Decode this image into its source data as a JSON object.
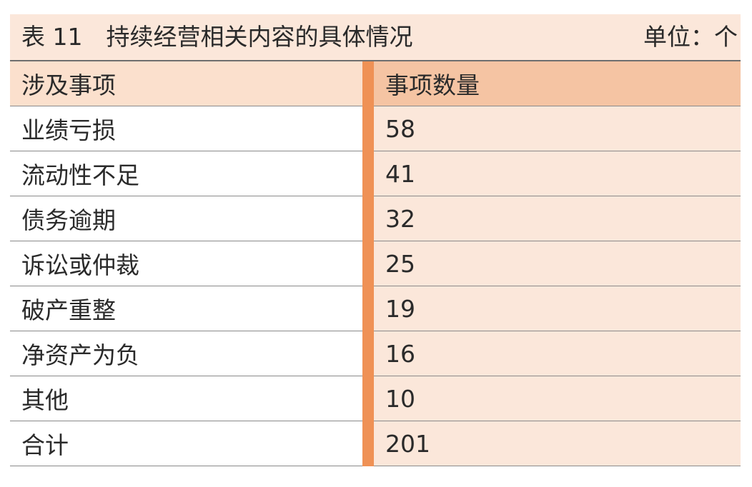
{
  "table": {
    "title": "表 11　持续经营相关内容的具体情况",
    "unit": "单位：个",
    "headers": [
      "涉及事项",
      "事项数量"
    ],
    "rows": [
      {
        "item": "业绩亏损",
        "count": "58"
      },
      {
        "item": "流动性不足",
        "count": "41"
      },
      {
        "item": "债务逾期",
        "count": "32"
      },
      {
        "item": "诉讼或仲裁",
        "count": "25"
      },
      {
        "item": "破产重整",
        "count": "19"
      },
      {
        "item": "净资产为负",
        "count": "16"
      },
      {
        "item": "其他",
        "count": "10"
      },
      {
        "item": "合计",
        "count": "201"
      }
    ]
  },
  "colors": {
    "title_background": "#fbe7da",
    "header_left_background": "#fbe0cd",
    "header_right_background": "#f5c4a3",
    "value_column_background": "#fbe7da",
    "accent_divider": "#ef9155"
  }
}
